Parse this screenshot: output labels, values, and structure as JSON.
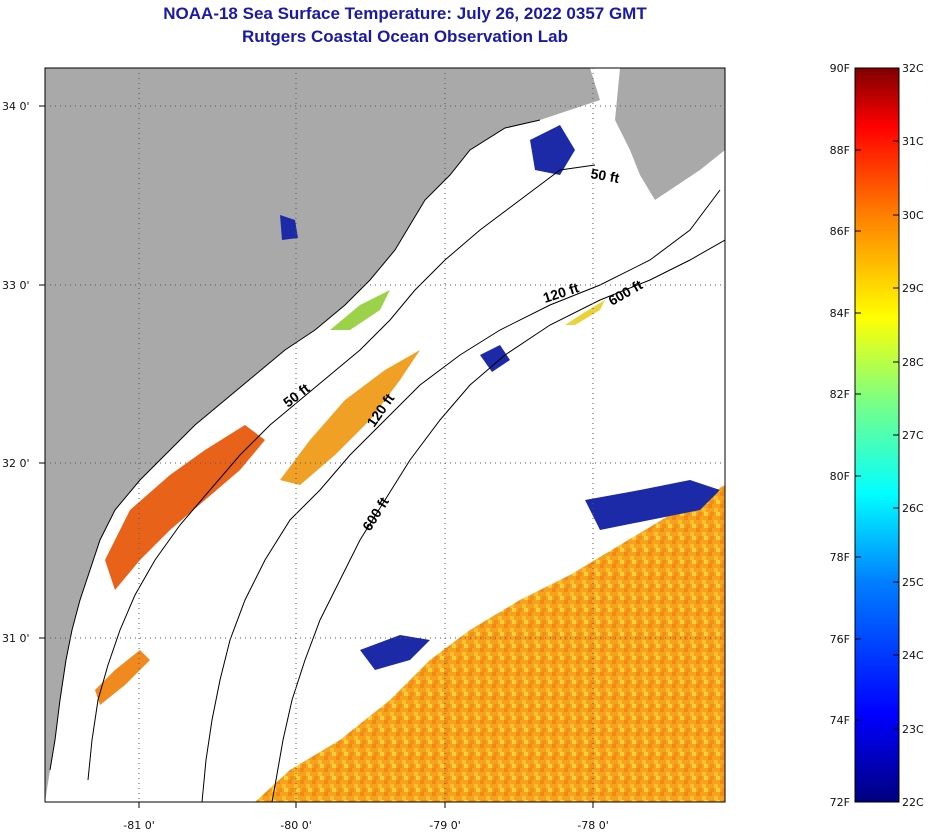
{
  "title_line1": "NOAA-18 Sea Surface Temperature:  July 26, 2022 0357 GMT",
  "title_line2": "Rutgers Coastal Ocean Observation Lab",
  "map": {
    "lon_labels": [
      "-81 0'",
      "-80 0'",
      "-79 0'",
      "-78 0'"
    ],
    "lat_labels": [
      "34 0'",
      "33 0'",
      "32 0'",
      "31 0'"
    ],
    "contour_labels": [
      "50 ft",
      "120 ft",
      "600 ft",
      "50 ft",
      "120 ft",
      "600 ft"
    ]
  },
  "colorbar": {
    "fahrenheit_labels": [
      "90F",
      "88F",
      "86F",
      "84F",
      "82F",
      "80F",
      "78F",
      "76F",
      "74F",
      "72F"
    ],
    "celsius_labels": [
      "32C",
      "31C",
      "30C",
      "29C",
      "28C",
      "27C",
      "26C",
      "25C",
      "24C",
      "23C",
      "22C"
    ],
    "colors": [
      "#00007f",
      "#0000ff",
      "#007fff",
      "#00ffff",
      "#7fff7f",
      "#ffff00",
      "#ff7f00",
      "#ff0000",
      "#7f0000"
    ]
  },
  "colors": {
    "land": "#a9a9a9",
    "ocean": "#ffffff",
    "title": "#1a1aa6",
    "warm_water": "#f59a1c",
    "cold_water": "#1d2aa8"
  }
}
